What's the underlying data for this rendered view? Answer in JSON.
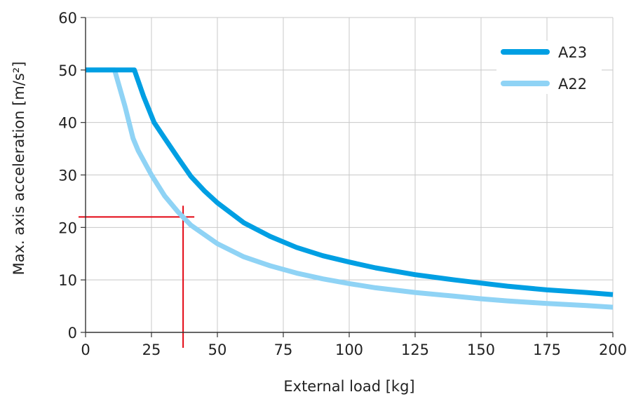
{
  "chart_data": {
    "type": "line",
    "title": "",
    "xlabel": "External load [kg]",
    "ylabel": "Max. axis acceleration [m/s²]",
    "xlim": [
      0,
      200
    ],
    "ylim": [
      0,
      60
    ],
    "xticks": [
      "0",
      "25",
      "50",
      "75",
      "100",
      "125",
      "150",
      "175",
      "200"
    ],
    "yticks": [
      "0",
      "10",
      "20",
      "30",
      "40",
      "50",
      "60"
    ],
    "grid": true,
    "legend_position": "top-right",
    "series": [
      {
        "name": "A23",
        "color": "#009fe3",
        "points": [
          [
            0,
            50
          ],
          [
            18.5,
            50
          ],
          [
            22,
            45
          ],
          [
            26,
            40
          ],
          [
            30,
            37
          ],
          [
            35,
            33.3
          ],
          [
            40,
            29.7
          ],
          [
            45,
            27
          ],
          [
            50,
            24.7
          ],
          [
            60,
            20.9
          ],
          [
            70,
            18.3
          ],
          [
            80,
            16.2
          ],
          [
            90,
            14.6
          ],
          [
            100,
            13.4
          ],
          [
            110,
            12.3
          ],
          [
            125,
            11
          ],
          [
            140,
            10
          ],
          [
            150,
            9.4
          ],
          [
            160,
            8.8
          ],
          [
            175,
            8.1
          ],
          [
            190,
            7.6
          ],
          [
            200,
            7.2
          ]
        ]
      },
      {
        "name": "A22",
        "color": "#8fd3f5",
        "points": [
          [
            0,
            50
          ],
          [
            11,
            50
          ],
          [
            15,
            43
          ],
          [
            18,
            37
          ],
          [
            20,
            34.6
          ],
          [
            25,
            30
          ],
          [
            30,
            26
          ],
          [
            35,
            23
          ],
          [
            40,
            20.4
          ],
          [
            50,
            16.9
          ],
          [
            60,
            14.4
          ],
          [
            70,
            12.7
          ],
          [
            80,
            11.3
          ],
          [
            90,
            10.2
          ],
          [
            100,
            9.3
          ],
          [
            110,
            8.5
          ],
          [
            125,
            7.6
          ],
          [
            140,
            6.9
          ],
          [
            150,
            6.4
          ],
          [
            160,
            6.0
          ],
          [
            175,
            5.5
          ],
          [
            190,
            5.1
          ],
          [
            200,
            4.8
          ]
        ]
      }
    ],
    "annotation": {
      "x": 37,
      "y": 22,
      "color": "#e30613"
    }
  }
}
